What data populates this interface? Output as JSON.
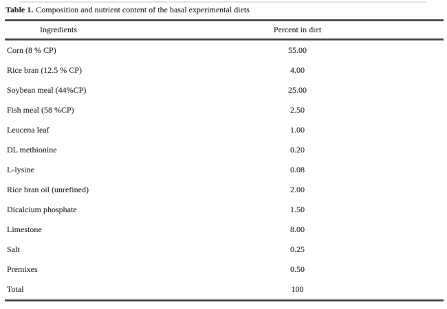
{
  "page": {
    "background_color": "#ffffff",
    "text_color": "#2e2e2e",
    "rule_color": "#4a4a4a"
  },
  "table": {
    "caption_label": "Table 1.",
    "caption_text": "Composition and nutrient content of the basal experimental diets",
    "columns": [
      "Ingredients",
      "Percent in diet"
    ],
    "rows": [
      {
        "ingredient": "Corn (8 % CP)",
        "percent": "55.00"
      },
      {
        "ingredient": "Rice bran (12.5 % CP)",
        "percent": "4.00"
      },
      {
        "ingredient": "Soybean meal (44%CP)",
        "percent": "25.00"
      },
      {
        "ingredient": "Fish meal (58 %CP)",
        "percent": "2.50"
      },
      {
        "ingredient": "Leucena leaf",
        "percent": "1.00"
      },
      {
        "ingredient": "DL methionine",
        "percent": "0.20"
      },
      {
        "ingredient": "L-lysine",
        "percent": "0.08"
      },
      {
        "ingredient": "Rice bran oil (unrefined)",
        "percent": "2.00"
      },
      {
        "ingredient": "Dicalcium phosphate",
        "percent": "1.50"
      },
      {
        "ingredient": "Limestone",
        "percent": "8.00"
      },
      {
        "ingredient": "Salt",
        "percent": "0.25"
      },
      {
        "ingredient": "Premixes",
        "percent": "0.50"
      },
      {
        "ingredient": "Total",
        "percent": "100"
      }
    ]
  }
}
